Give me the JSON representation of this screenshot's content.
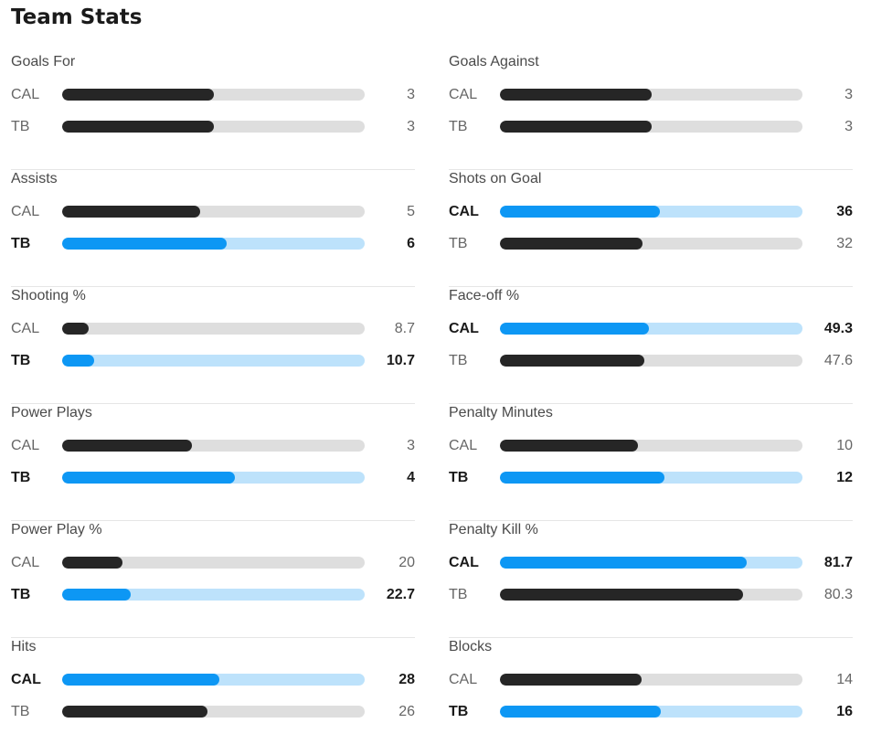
{
  "title": "Team Stats",
  "stats": [
    {
      "label": "Goals For",
      "rows": [
        {
          "team": "CAL",
          "value": "3",
          "fill": 0.5,
          "lead": false
        },
        {
          "team": "TB",
          "value": "3",
          "fill": 0.5,
          "lead": false
        }
      ]
    },
    {
      "label": "Goals Against",
      "rows": [
        {
          "team": "CAL",
          "value": "3",
          "fill": 0.5,
          "lead": false
        },
        {
          "team": "TB",
          "value": "3",
          "fill": 0.5,
          "lead": false
        }
      ]
    },
    {
      "label": "Assists",
      "rows": [
        {
          "team": "CAL",
          "value": "5",
          "fill": 0.455,
          "lead": false
        },
        {
          "team": "TB",
          "value": "6",
          "fill": 0.545,
          "lead": true
        }
      ]
    },
    {
      "label": "Shots on Goal",
      "rows": [
        {
          "team": "CAL",
          "value": "36",
          "fill": 0.529,
          "lead": true
        },
        {
          "team": "TB",
          "value": "32",
          "fill": 0.471,
          "lead": false
        }
      ]
    },
    {
      "label": "Shooting %",
      "rows": [
        {
          "team": "CAL",
          "value": "8.7",
          "fill": 0.087,
          "lead": false
        },
        {
          "team": "TB",
          "value": "10.7",
          "fill": 0.107,
          "lead": true
        }
      ]
    },
    {
      "label": "Face-off %",
      "rows": [
        {
          "team": "CAL",
          "value": "49.3",
          "fill": 0.493,
          "lead": true
        },
        {
          "team": "TB",
          "value": "47.6",
          "fill": 0.476,
          "lead": false
        }
      ]
    },
    {
      "label": "Power Plays",
      "rows": [
        {
          "team": "CAL",
          "value": "3",
          "fill": 0.429,
          "lead": false
        },
        {
          "team": "TB",
          "value": "4",
          "fill": 0.571,
          "lead": true
        }
      ]
    },
    {
      "label": "Penalty Minutes",
      "rows": [
        {
          "team": "CAL",
          "value": "10",
          "fill": 0.455,
          "lead": false
        },
        {
          "team": "TB",
          "value": "12",
          "fill": 0.545,
          "lead": true
        }
      ]
    },
    {
      "label": "Power Play %",
      "rows": [
        {
          "team": "CAL",
          "value": "20",
          "fill": 0.2,
          "lead": false
        },
        {
          "team": "TB",
          "value": "22.7",
          "fill": 0.227,
          "lead": true
        }
      ]
    },
    {
      "label": "Penalty Kill %",
      "rows": [
        {
          "team": "CAL",
          "value": "81.7",
          "fill": 0.817,
          "lead": true
        },
        {
          "team": "TB",
          "value": "80.3",
          "fill": 0.803,
          "lead": false
        }
      ]
    },
    {
      "label": "Hits",
      "rows": [
        {
          "team": "CAL",
          "value": "28",
          "fill": 0.519,
          "lead": true
        },
        {
          "team": "TB",
          "value": "26",
          "fill": 0.481,
          "lead": false
        }
      ]
    },
    {
      "label": "Blocks",
      "rows": [
        {
          "team": "CAL",
          "value": "14",
          "fill": 0.467,
          "lead": false
        },
        {
          "team": "TB",
          "value": "16",
          "fill": 0.533,
          "lead": true
        }
      ]
    }
  ],
  "colors": {
    "lead_fill": "#0d97f4",
    "lead_track": "#bde2fb",
    "normal_fill": "#262626",
    "normal_track": "#dedede"
  }
}
